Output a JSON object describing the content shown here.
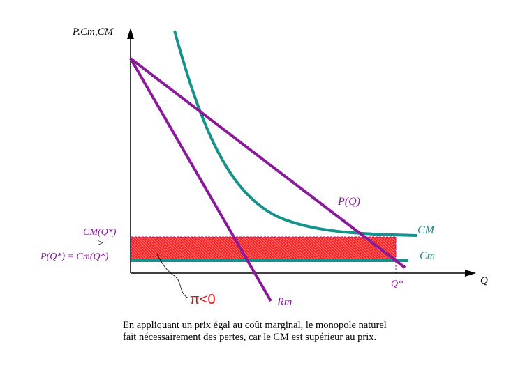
{
  "diagram": {
    "y_axis_label": "P.Cm,CM",
    "x_axis_label": "Q",
    "curves": {
      "demand": "P(Q)",
      "marginal_revenue": "Rm",
      "average_cost": "CM",
      "marginal_cost": "Cm"
    },
    "annotations": {
      "avg_cost_at_q": "CM(Q*)",
      "greater_than": ">",
      "price_equals_mc": "P(Q*) = Cm(Q*)",
      "q_star": "Q*",
      "profit_label": "π<0"
    },
    "caption_line1": "En appliquant un prix égal au coût marginal, le monopole naturel",
    "caption_line2": "fait nécessairement des pertes, car le CM est supérieur au prix."
  },
  "colors": {
    "demand": "#8b1a9b",
    "cost": "#16918b",
    "loss_area": "#ff1a1a",
    "loss_label": "#e01010",
    "axis": "#000000"
  }
}
